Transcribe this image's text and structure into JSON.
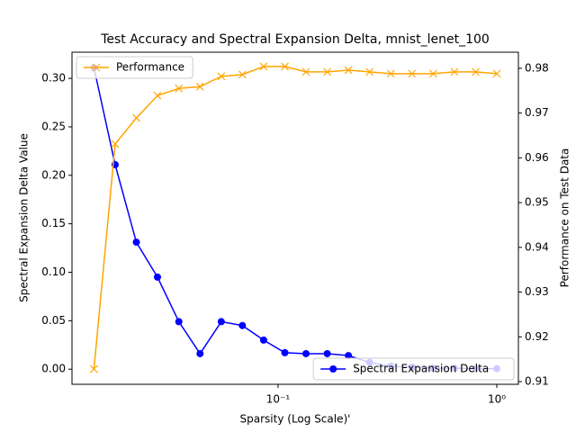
{
  "chart_data": {
    "type": "line",
    "title": "Test Accuracy and Spectral Expansion Delta, mnist_lenet_100",
    "xlabel": "Sparsity (Log Scale)'",
    "ylabel": "Spectral Expansion Delta Value",
    "y2label": "Performance on Test Data",
    "xscale": "log",
    "x": [
      0.0144,
      0.018,
      0.0225,
      0.0281,
      0.0352,
      0.044,
      0.055,
      0.0687,
      0.0859,
      0.1074,
      0.1342,
      0.1678,
      0.2097,
      0.2621,
      0.3277,
      0.4096,
      0.512,
      0.64,
      0.8,
      1.0
    ],
    "xlim": [
      0.01143,
      1.255
    ],
    "xticks": [
      {
        "value": 0.1,
        "label": "10⁻¹"
      },
      {
        "value": 1,
        "label": "10⁰"
      }
    ],
    "ylim": [
      -0.0156,
      0.327
    ],
    "yticks": [
      {
        "value": 0,
        "label": "0.00"
      },
      0.05,
      {
        "value": 0.1,
        "label": "0.10"
      },
      0.15,
      {
        "value": 0.2,
        "label": "0.20"
      },
      0.25,
      {
        "value": 0.3,
        "label": "0.30"
      }
    ],
    "y2lim": [
      0.9094,
      0.9836
    ],
    "y2ticks": [
      0.91,
      0.92,
      0.93,
      0.94,
      0.95,
      0.96,
      0.97,
      0.98
    ],
    "series": [
      {
        "name": "Spectral Expansion Delta",
        "color": "#0000ff",
        "marker": "circle",
        "legend_loc": "lower right",
        "values": [
          0.311,
          0.211,
          0.131,
          0.095,
          0.049,
          0.016,
          0.049,
          0.045,
          0.03,
          0.017,
          0.016,
          0.016,
          0.014,
          0.007,
          0.003,
          0.002,
          0.001,
          0.001,
          0.0005,
          0.0005
        ]
      },
      {
        "name": "Performance",
        "color": "#ffa500",
        "marker": "x",
        "axis": "y2",
        "legend_loc": "upper left",
        "values": [
          0.9128,
          0.9631,
          0.9689,
          0.9739,
          0.9755,
          0.9759,
          0.9782,
          0.9786,
          0.9804,
          0.9804,
          0.9792,
          0.9792,
          0.9796,
          0.9792,
          0.9788,
          0.9788,
          0.9788,
          0.9792,
          0.9792,
          0.9788
        ]
      }
    ]
  }
}
